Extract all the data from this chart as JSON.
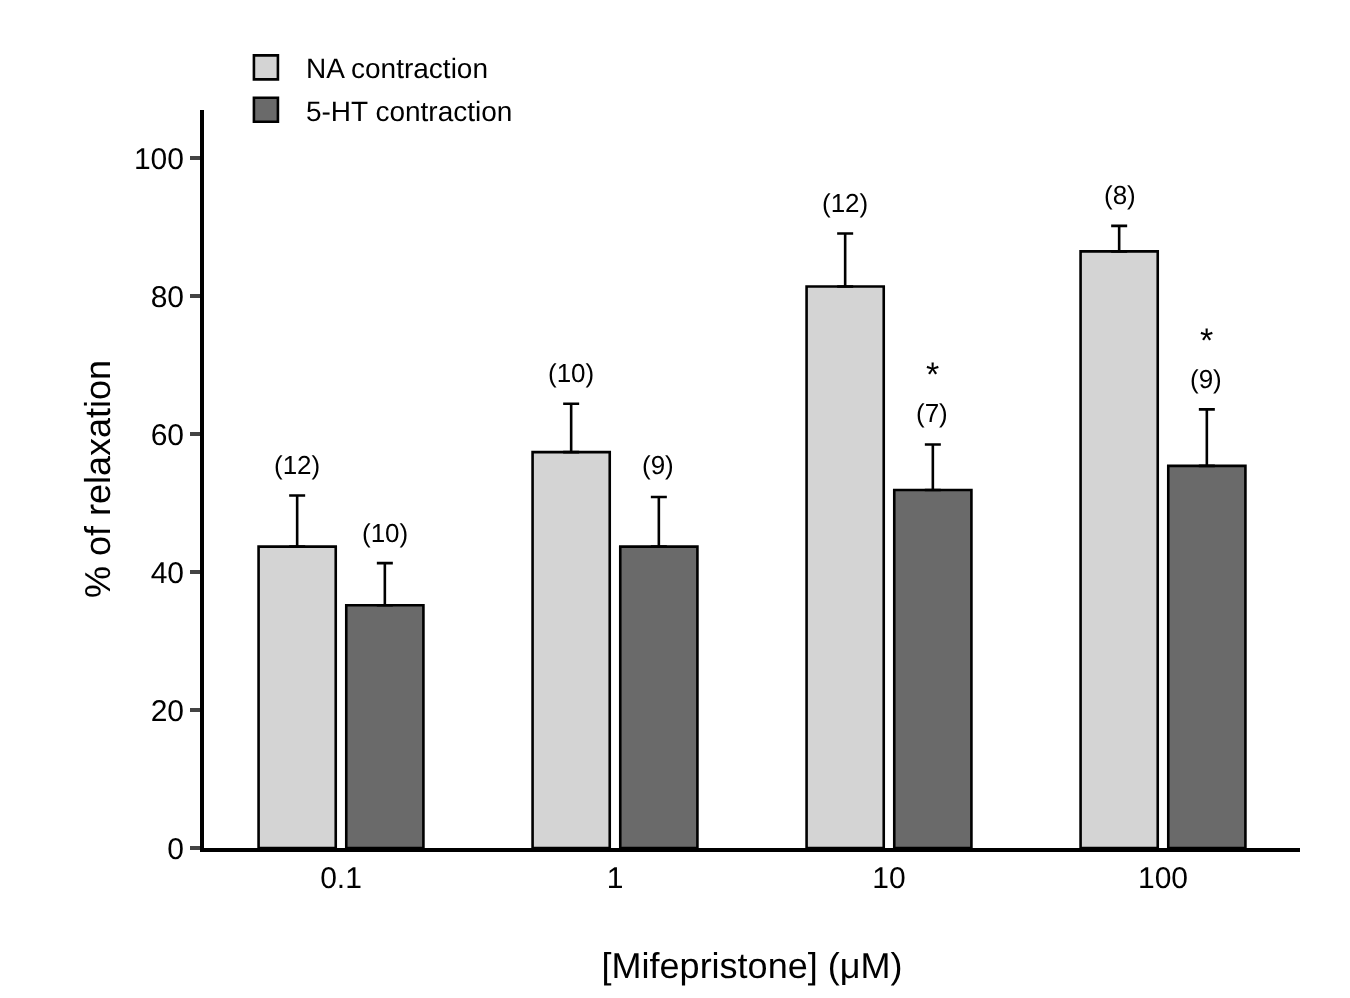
{
  "chart_data": {
    "type": "bar",
    "xlabel": "[Mifepristone] (μM)",
    "ylabel": "% of relaxation",
    "categories": [
      "0.1",
      "1",
      "10",
      "100"
    ],
    "series": [
      {
        "name": "NA contraction",
        "color": "#d4d4d4",
        "values": [
          43.7,
          57.4,
          81.4,
          86.5
        ],
        "errors": [
          [
            43.7,
            51.1
          ],
          [
            57.4,
            64.4
          ],
          [
            81.4,
            89.1
          ],
          [
            86.5,
            90.2
          ]
        ]
      },
      {
        "name": "5-HT contraction",
        "color": "#6a6a6a",
        "values": [
          35.2,
          43.7,
          51.9,
          55.4
        ],
        "errors": [
          [
            35.2,
            41.3
          ],
          [
            43.7,
            50.9
          ],
          [
            51.9,
            58.5
          ],
          [
            55.4,
            63.6
          ]
        ]
      }
    ],
    "ylim": [
      0,
      107
    ],
    "yticks": [
      0,
      20,
      40,
      60,
      80,
      100
    ],
    "grid": false,
    "legend": "top left",
    "annotations": [
      {
        "text": "(12)",
        "x": "0.1",
        "y": 43.7
      },
      {
        "text": "(10)",
        "x": "0.1",
        "y": 41.3
      },
      {
        "text": "(10)",
        "x": "1",
        "y": 57.4
      },
      {
        "text": "(9)",
        "x": "1",
        "y": 50.9
      },
      {
        "text": "(12)",
        "x": "10",
        "y": 81.4
      },
      {
        "text": "(7)",
        "x": "10",
        "y": 58.5
      },
      {
        "text": "*",
        "x": "10",
        "y": 58.5
      },
      {
        "text": "(8)",
        "x": "100",
        "y": 86.5
      },
      {
        "text": "(9)",
        "x": "100",
        "y": 63.6
      },
      {
        "text": "*",
        "x": "100",
        "y": 63.6
      }
    ]
  }
}
